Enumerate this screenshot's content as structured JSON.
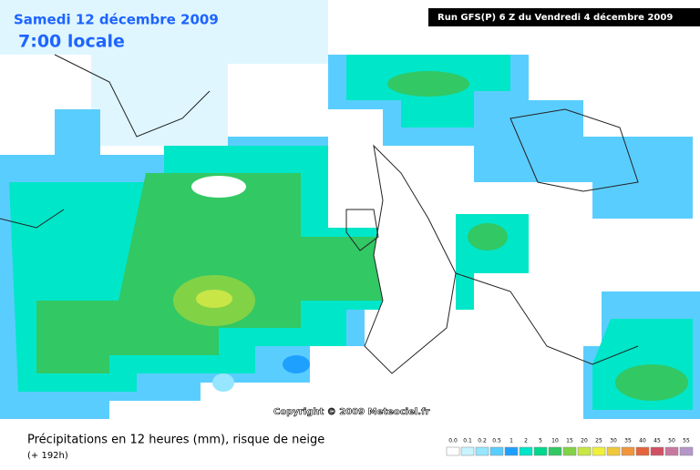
{
  "header": {
    "date": "Samedi 12 décembre 2009",
    "time": "7:00 locale",
    "run": "Run GFS(P) 6 Z du Vendredi 4 décembre 2009"
  },
  "map": {
    "copyright": "Copyright © 2009 Meteociel.fr"
  },
  "footer": {
    "title": "Précipitations en 12 heures (mm), risque de neige",
    "lead": "(+ 192h)"
  },
  "legend": {
    "items": [
      {
        "label": "0.0",
        "color": "#ffffff"
      },
      {
        "label": "0.1",
        "color": "#c8f4ff"
      },
      {
        "label": "0.2",
        "color": "#96e6ff"
      },
      {
        "label": "0.5",
        "color": "#5acdff"
      },
      {
        "label": "1",
        "color": "#1ea0ff"
      },
      {
        "label": "2",
        "color": "#00e6c8"
      },
      {
        "label": "5",
        "color": "#00d88c"
      },
      {
        "label": "10",
        "color": "#32c864"
      },
      {
        "label": "15",
        "color": "#82d246"
      },
      {
        "label": "20",
        "color": "#c8e646"
      },
      {
        "label": "25",
        "color": "#f0f03c"
      },
      {
        "label": "30",
        "color": "#f0c83c"
      },
      {
        "label": "35",
        "color": "#f0963c"
      },
      {
        "label": "40",
        "color": "#e6643c"
      },
      {
        "label": "45",
        "color": "#d25064"
      },
      {
        "label": "50",
        "color": "#c878a0"
      },
      {
        "label": "55",
        "color": "#b496c8"
      }
    ]
  }
}
